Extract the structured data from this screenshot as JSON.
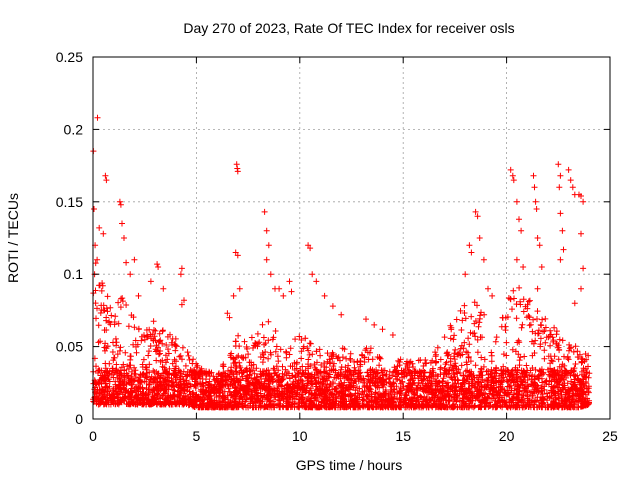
{
  "chart_data": {
    "type": "scatter",
    "title": "Day 270 of 2023, Rate Of TEC Index for receiver osls",
    "xlabel": "GPS time / hours",
    "ylabel": "ROTI / TECUs",
    "xlim": [
      0,
      25
    ],
    "ylim": [
      0,
      0.25
    ],
    "x_ticks": [
      0,
      5,
      10,
      15,
      20,
      25
    ],
    "x_tick_labels": [
      "0",
      "5",
      "10",
      "15",
      "20",
      "25"
    ],
    "y_ticks": [
      0,
      0.05,
      0.1,
      0.15,
      0.2,
      0.25
    ],
    "y_tick_labels": [
      "0",
      "0.05",
      "0.1",
      "0.15",
      "0.2",
      "0.25"
    ],
    "grid": true,
    "marker": "plus",
    "color": "#ff0000",
    "x_data_range": [
      0,
      24
    ],
    "envelope": {
      "x": [
        0,
        0.25,
        0.5,
        1.0,
        1.5,
        2.0,
        2.5,
        3.0,
        3.5,
        4.0,
        4.5,
        5.0,
        5.5,
        6.0,
        6.5,
        7.0,
        7.5,
        8.0,
        8.5,
        9.0,
        9.5,
        10.0,
        10.5,
        11.0,
        11.5,
        12.0,
        12.5,
        13.0,
        13.5,
        14.0,
        14.5,
        15.0,
        15.5,
        16.0,
        16.5,
        17.0,
        17.5,
        18.0,
        18.5,
        19.0,
        19.5,
        20.0,
        20.5,
        21.0,
        21.5,
        22.0,
        22.5,
        23.0,
        23.5,
        24.0
      ],
      "upper": [
        0.1,
        0.12,
        0.09,
        0.08,
        0.09,
        0.07,
        0.06,
        0.07,
        0.06,
        0.06,
        0.05,
        0.04,
        0.035,
        0.035,
        0.04,
        0.06,
        0.05,
        0.07,
        0.07,
        0.06,
        0.05,
        0.06,
        0.06,
        0.05,
        0.045,
        0.05,
        0.045,
        0.05,
        0.05,
        0.045,
        0.045,
        0.04,
        0.04,
        0.045,
        0.045,
        0.06,
        0.07,
        0.08,
        0.09,
        0.07,
        0.06,
        0.08,
        0.1,
        0.09,
        0.08,
        0.07,
        0.06,
        0.06,
        0.05,
        0.045
      ],
      "lower": [
        0.012,
        0.01,
        0.01,
        0.01,
        0.01,
        0.01,
        0.01,
        0.01,
        0.01,
        0.01,
        0.01,
        0.008,
        0.008,
        0.008,
        0.008,
        0.008,
        0.008,
        0.008,
        0.008,
        0.008,
        0.008,
        0.008,
        0.008,
        0.008,
        0.008,
        0.008,
        0.008,
        0.008,
        0.008,
        0.008,
        0.008,
        0.008,
        0.008,
        0.008,
        0.008,
        0.008,
        0.008,
        0.008,
        0.008,
        0.008,
        0.008,
        0.008,
        0.008,
        0.008,
        0.008,
        0.008,
        0.008,
        0.008,
        0.008,
        0.01
      ]
    },
    "outliers": [
      [
        0.02,
        0.185
      ],
      [
        0.22,
        0.208
      ],
      [
        0.05,
        0.145
      ],
      [
        0.3,
        0.132
      ],
      [
        0.5,
        0.128
      ],
      [
        0.6,
        0.168
      ],
      [
        0.65,
        0.165
      ],
      [
        0.1,
        0.12
      ],
      [
        0.2,
        0.11
      ],
      [
        1.3,
        0.15
      ],
      [
        1.35,
        0.148
      ],
      [
        1.4,
        0.135
      ],
      [
        1.5,
        0.125
      ],
      [
        1.6,
        0.108
      ],
      [
        1.8,
        0.1
      ],
      [
        2.0,
        0.11
      ],
      [
        2.2,
        0.085
      ],
      [
        2.8,
        0.095
      ],
      [
        3.1,
        0.107
      ],
      [
        3.15,
        0.105
      ],
      [
        3.4,
        0.09
      ],
      [
        4.3,
        0.104
      ],
      [
        4.25,
        0.1
      ],
      [
        4.4,
        0.082
      ],
      [
        4.3,
        0.079
      ],
      [
        6.95,
        0.176
      ],
      [
        6.98,
        0.173
      ],
      [
        7.0,
        0.171
      ],
      [
        6.9,
        0.115
      ],
      [
        7.0,
        0.113
      ],
      [
        6.8,
        0.085
      ],
      [
        7.1,
        0.09
      ],
      [
        6.5,
        0.073
      ],
      [
        6.6,
        0.07
      ],
      [
        8.3,
        0.143
      ],
      [
        8.4,
        0.13
      ],
      [
        8.5,
        0.12
      ],
      [
        8.4,
        0.11
      ],
      [
        8.6,
        0.1
      ],
      [
        8.8,
        0.09
      ],
      [
        9.0,
        0.09
      ],
      [
        9.2,
        0.085
      ],
      [
        9.5,
        0.095
      ],
      [
        9.6,
        0.088
      ],
      [
        10.4,
        0.12
      ],
      [
        10.5,
        0.118
      ],
      [
        10.6,
        0.1
      ],
      [
        10.8,
        0.095
      ],
      [
        11.2,
        0.085
      ],
      [
        11.6,
        0.078
      ],
      [
        12.0,
        0.072
      ],
      [
        13.2,
        0.069
      ],
      [
        13.6,
        0.065
      ],
      [
        14.0,
        0.062
      ],
      [
        14.5,
        0.058
      ],
      [
        18.0,
        0.1
      ],
      [
        18.2,
        0.12
      ],
      [
        18.3,
        0.115
      ],
      [
        18.5,
        0.143
      ],
      [
        18.6,
        0.14
      ],
      [
        18.7,
        0.125
      ],
      [
        18.9,
        0.11
      ],
      [
        19.1,
        0.09
      ],
      [
        19.3,
        0.085
      ],
      [
        20.2,
        0.172
      ],
      [
        20.3,
        0.168
      ],
      [
        20.35,
        0.165
      ],
      [
        20.5,
        0.15
      ],
      [
        20.6,
        0.138
      ],
      [
        20.7,
        0.13
      ],
      [
        20.5,
        0.11
      ],
      [
        20.8,
        0.105
      ],
      [
        21.3,
        0.168
      ],
      [
        21.35,
        0.16
      ],
      [
        21.4,
        0.15
      ],
      [
        21.45,
        0.145
      ],
      [
        21.5,
        0.125
      ],
      [
        21.6,
        0.12
      ],
      [
        21.7,
        0.105
      ],
      [
        21.5,
        0.09
      ],
      [
        22.5,
        0.176
      ],
      [
        22.6,
        0.168
      ],
      [
        22.55,
        0.16
      ],
      [
        22.6,
        0.142
      ],
      [
        22.7,
        0.13
      ],
      [
        22.75,
        0.117
      ],
      [
        22.6,
        0.11
      ],
      [
        23.0,
        0.172
      ],
      [
        23.1,
        0.165
      ],
      [
        23.2,
        0.16
      ],
      [
        23.3,
        0.155
      ],
      [
        23.5,
        0.155
      ],
      [
        23.6,
        0.154
      ],
      [
        23.7,
        0.15
      ],
      [
        23.6,
        0.128
      ],
      [
        23.7,
        0.104
      ],
      [
        23.6,
        0.09
      ],
      [
        23.3,
        0.08
      ]
    ]
  }
}
